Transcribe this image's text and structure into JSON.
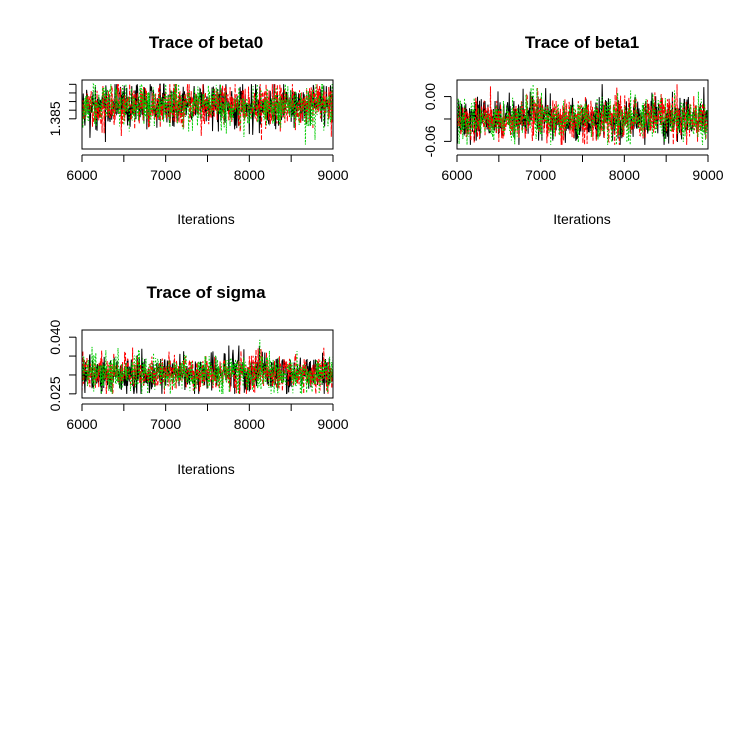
{
  "chart_data": [
    {
      "type": "line",
      "title": "Trace of beta0",
      "xlabel": "Iterations",
      "ylabel": "",
      "xlim": [
        6000,
        9000
      ],
      "x_ticks": [
        "6000",
        "7000",
        "8000",
        "9000"
      ],
      "ylim": [
        1.3815,
        1.3895
      ],
      "y_ticks": [
        1.385,
        1.386,
        1.387,
        1.388,
        1.389
      ],
      "y_tick_labels": [
        "1.385",
        "",
        "",
        "",
        ""
      ],
      "series_center": 1.3865,
      "series_spread": 0.0013,
      "series": [
        {
          "color": "#000000",
          "style": "solid"
        },
        {
          "color": "#ff0000",
          "style": "dashed"
        },
        {
          "color": "#00cd00",
          "style": "dotted"
        }
      ]
    },
    {
      "type": "line",
      "title": "Trace of beta1",
      "xlabel": "Iterations",
      "ylabel": "",
      "xlim": [
        6000,
        9000
      ],
      "x_ticks": [
        "6000",
        "7000",
        "8000",
        "9000"
      ],
      "ylim": [
        -0.0702,
        0.0222
      ],
      "y_ticks": [
        0.0,
        -0.03,
        -0.06
      ],
      "y_tick_labels": [
        "0.00",
        "",
        "-0.06"
      ],
      "series_center": -0.03,
      "series_spread": 0.015,
      "series": [
        {
          "color": "#000000",
          "style": "solid"
        },
        {
          "color": "#ff0000",
          "style": "dashed"
        },
        {
          "color": "#00cd00",
          "style": "dotted"
        }
      ]
    },
    {
      "type": "line",
      "title": "Trace of sigma",
      "xlabel": "Iterations",
      "ylabel": "",
      "xlim": [
        6000,
        9000
      ],
      "x_ticks": [
        "6000",
        "7000",
        "8000",
        "9000"
      ],
      "ylim": [
        0.0239,
        0.0419
      ],
      "y_ticks": [
        0.025,
        0.03,
        0.035,
        0.04
      ],
      "y_tick_labels": [
        "0.025",
        "",
        "",
        "0.040"
      ],
      "series_center": 0.0305,
      "series_spread": 0.0025,
      "series": [
        {
          "color": "#000000",
          "style": "solid"
        },
        {
          "color": "#ff0000",
          "style": "dashed"
        },
        {
          "color": "#00cd00",
          "style": "dotted"
        }
      ]
    }
  ]
}
